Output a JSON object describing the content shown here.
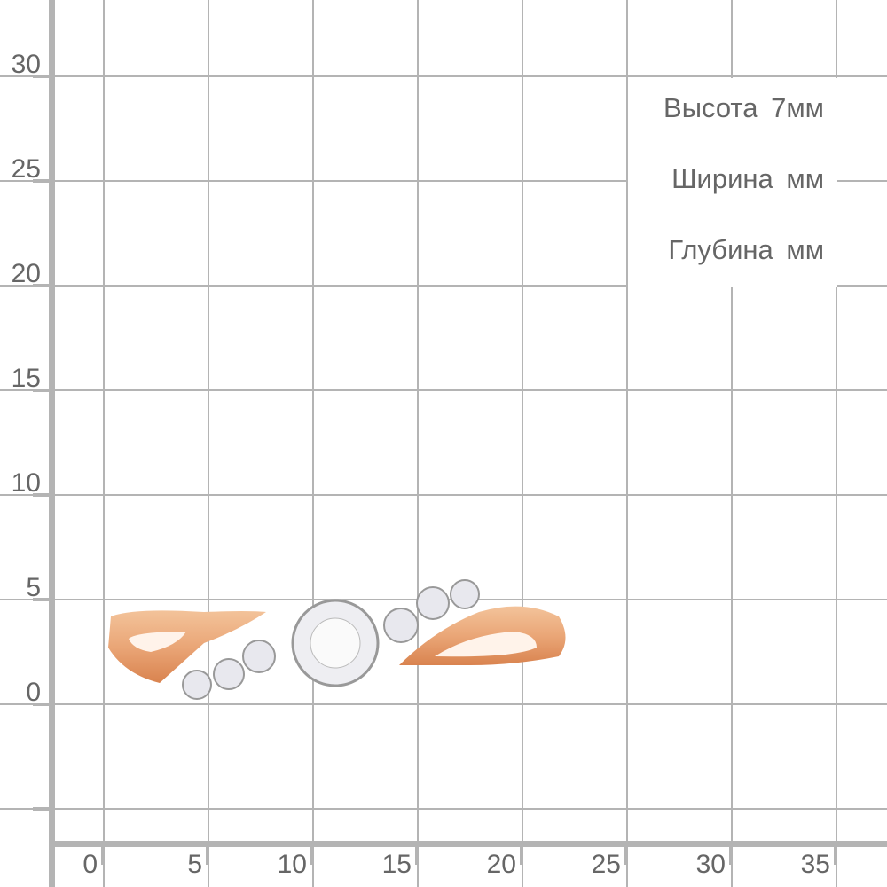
{
  "y_axis": {
    "labels": [
      "30",
      "25",
      "20",
      "15",
      "10",
      "5",
      "0"
    ]
  },
  "x_axis": {
    "labels": [
      "0",
      "5",
      "10",
      "15",
      "20",
      "25",
      "30",
      "35"
    ]
  },
  "dimensions": [
    {
      "label": "Высота",
      "value": "7мм"
    },
    {
      "label": "Ширина",
      "value": "мм"
    },
    {
      "label": "Глубина",
      "value": "мм"
    }
  ],
  "product": {
    "icon": "gold-ring-with-stones",
    "metal_color": "#eaa677",
    "stone_color": "#e8e8ee"
  }
}
